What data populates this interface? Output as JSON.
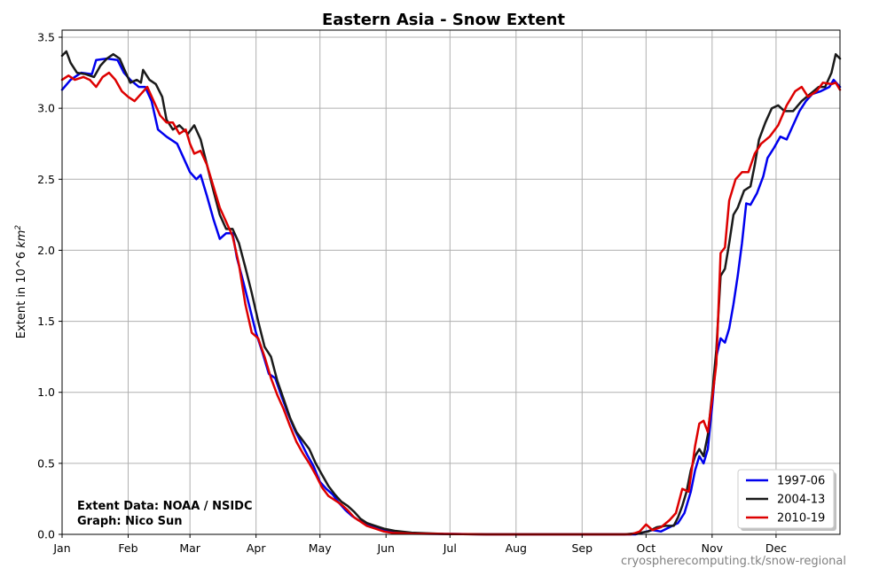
{
  "chart_data": {
    "type": "line",
    "title": "Eastern Asia - Snow Extent",
    "xlabel": "",
    "ylabel_main": "Extent in 10^6 ",
    "ylabel_unit": "km",
    "ylabel_sup": "2",
    "x_unit": "day of year",
    "xlim": [
      1,
      366
    ],
    "ylim": [
      0,
      3.55
    ],
    "x_ticks": [
      {
        "label": "Jan",
        "day": 1
      },
      {
        "label": "Feb",
        "day": 32
      },
      {
        "label": "Mar",
        "day": 61
      },
      {
        "label": "Apr",
        "day": 92
      },
      {
        "label": "May",
        "day": 122
      },
      {
        "label": "Jun",
        "day": 153
      },
      {
        "label": "Jul",
        "day": 183
      },
      {
        "label": "Aug",
        "day": 214
      },
      {
        "label": "Sep",
        "day": 245
      },
      {
        "label": "Oct",
        "day": 275
      },
      {
        "label": "Nov",
        "day": 306
      },
      {
        "label": "Dec",
        "day": 336
      }
    ],
    "y_ticks": [
      0.0,
      0.5,
      1.0,
      1.5,
      2.0,
      2.5,
      3.0,
      3.5
    ],
    "y_tick_labels": [
      "0.0",
      "0.5",
      "1.0",
      "1.5",
      "2.0",
      "2.5",
      "3.0",
      "3.5"
    ],
    "grid": true,
    "legend_position": "bottom-right",
    "series": [
      {
        "name": "1997-06",
        "color": "#0000ee",
        "points": [
          [
            1,
            3.13
          ],
          [
            5,
            3.2
          ],
          [
            10,
            3.25
          ],
          [
            15,
            3.24
          ],
          [
            17,
            3.34
          ],
          [
            22,
            3.35
          ],
          [
            27,
            3.34
          ],
          [
            30,
            3.25
          ],
          [
            33,
            3.2
          ],
          [
            37,
            3.15
          ],
          [
            40,
            3.15
          ],
          [
            43,
            3.05
          ],
          [
            46,
            2.85
          ],
          [
            50,
            2.8
          ],
          [
            55,
            2.75
          ],
          [
            58,
            2.65
          ],
          [
            61,
            2.55
          ],
          [
            64,
            2.5
          ],
          [
            66,
            2.53
          ],
          [
            69,
            2.38
          ],
          [
            72,
            2.22
          ],
          [
            75,
            2.08
          ],
          [
            78,
            2.12
          ],
          [
            81,
            2.12
          ],
          [
            83,
            1.95
          ],
          [
            86,
            1.78
          ],
          [
            89,
            1.6
          ],
          [
            92,
            1.42
          ],
          [
            95,
            1.28
          ],
          [
            98,
            1.13
          ],
          [
            101,
            1.1
          ],
          [
            104,
            0.97
          ],
          [
            107,
            0.85
          ],
          [
            110,
            0.74
          ],
          [
            113,
            0.65
          ],
          [
            116,
            0.56
          ],
          [
            119,
            0.48
          ],
          [
            122,
            0.37
          ],
          [
            125,
            0.32
          ],
          [
            128,
            0.28
          ],
          [
            131,
            0.22
          ],
          [
            134,
            0.17
          ],
          [
            137,
            0.13
          ],
          [
            140,
            0.1
          ],
          [
            143,
            0.08
          ],
          [
            146,
            0.06
          ],
          [
            150,
            0.04
          ],
          [
            155,
            0.02
          ],
          [
            160,
            0.015
          ],
          [
            170,
            0.005
          ],
          [
            200,
            0.0
          ],
          [
            270,
            0.0
          ],
          [
            278,
            0.03
          ],
          [
            282,
            0.02
          ],
          [
            286,
            0.05
          ],
          [
            290,
            0.08
          ],
          [
            293,
            0.15
          ],
          [
            296,
            0.3
          ],
          [
            298,
            0.45
          ],
          [
            300,
            0.55
          ],
          [
            302,
            0.5
          ],
          [
            304,
            0.6
          ],
          [
            306,
            0.9
          ],
          [
            308,
            1.25
          ],
          [
            310,
            1.38
          ],
          [
            312,
            1.35
          ],
          [
            314,
            1.45
          ],
          [
            316,
            1.62
          ],
          [
            318,
            1.82
          ],
          [
            320,
            2.05
          ],
          [
            322,
            2.33
          ],
          [
            324,
            2.32
          ],
          [
            327,
            2.4
          ],
          [
            330,
            2.52
          ],
          [
            332,
            2.65
          ],
          [
            335,
            2.72
          ],
          [
            338,
            2.8
          ],
          [
            341,
            2.78
          ],
          [
            344,
            2.88
          ],
          [
            347,
            2.98
          ],
          [
            350,
            3.05
          ],
          [
            353,
            3.1
          ],
          [
            357,
            3.12
          ],
          [
            361,
            3.15
          ],
          [
            363,
            3.2
          ],
          [
            366,
            3.15
          ]
        ]
      },
      {
        "name": "2004-13",
        "color": "#1a1a1a",
        "points": [
          [
            1,
            3.37
          ],
          [
            3,
            3.4
          ],
          [
            5,
            3.32
          ],
          [
            8,
            3.25
          ],
          [
            12,
            3.24
          ],
          [
            16,
            3.22
          ],
          [
            19,
            3.3
          ],
          [
            22,
            3.35
          ],
          [
            25,
            3.38
          ],
          [
            28,
            3.35
          ],
          [
            30,
            3.28
          ],
          [
            33,
            3.18
          ],
          [
            36,
            3.2
          ],
          [
            38,
            3.18
          ],
          [
            39,
            3.27
          ],
          [
            42,
            3.2
          ],
          [
            45,
            3.17
          ],
          [
            48,
            3.08
          ],
          [
            50,
            2.92
          ],
          [
            53,
            2.85
          ],
          [
            56,
            2.88
          ],
          [
            60,
            2.82
          ],
          [
            63,
            2.88
          ],
          [
            66,
            2.78
          ],
          [
            69,
            2.6
          ],
          [
            72,
            2.42
          ],
          [
            75,
            2.25
          ],
          [
            78,
            2.15
          ],
          [
            81,
            2.15
          ],
          [
            84,
            2.05
          ],
          [
            87,
            1.88
          ],
          [
            90,
            1.7
          ],
          [
            93,
            1.5
          ],
          [
            96,
            1.32
          ],
          [
            99,
            1.25
          ],
          [
            102,
            1.08
          ],
          [
            105,
            0.95
          ],
          [
            108,
            0.82
          ],
          [
            111,
            0.72
          ],
          [
            114,
            0.66
          ],
          [
            117,
            0.6
          ],
          [
            120,
            0.5
          ],
          [
            123,
            0.42
          ],
          [
            126,
            0.34
          ],
          [
            129,
            0.28
          ],
          [
            132,
            0.23
          ],
          [
            135,
            0.2
          ],
          [
            138,
            0.16
          ],
          [
            141,
            0.11
          ],
          [
            144,
            0.08
          ],
          [
            148,
            0.06
          ],
          [
            152,
            0.04
          ],
          [
            157,
            0.025
          ],
          [
            165,
            0.012
          ],
          [
            180,
            0.003
          ],
          [
            200,
            0.0
          ],
          [
            265,
            0.0
          ],
          [
            272,
            0.01
          ],
          [
            276,
            0.02
          ],
          [
            280,
            0.05
          ],
          [
            284,
            0.06
          ],
          [
            288,
            0.06
          ],
          [
            290,
            0.12
          ],
          [
            292,
            0.2
          ],
          [
            294,
            0.3
          ],
          [
            296,
            0.45
          ],
          [
            298,
            0.55
          ],
          [
            300,
            0.6
          ],
          [
            302,
            0.55
          ],
          [
            304,
            0.7
          ],
          [
            306,
            0.98
          ],
          [
            308,
            1.3
          ],
          [
            310,
            1.82
          ],
          [
            312,
            1.87
          ],
          [
            314,
            2.05
          ],
          [
            316,
            2.25
          ],
          [
            318,
            2.3
          ],
          [
            321,
            2.42
          ],
          [
            324,
            2.45
          ],
          [
            326,
            2.6
          ],
          [
            328,
            2.78
          ],
          [
            331,
            2.9
          ],
          [
            334,
            3.0
          ],
          [
            337,
            3.02
          ],
          [
            340,
            2.98
          ],
          [
            344,
            2.98
          ],
          [
            348,
            3.05
          ],
          [
            352,
            3.1
          ],
          [
            356,
            3.15
          ],
          [
            359,
            3.15
          ],
          [
            362,
            3.25
          ],
          [
            364,
            3.38
          ],
          [
            366,
            3.35
          ]
        ]
      },
      {
        "name": "2010-19",
        "color": "#dd0000",
        "points": [
          [
            1,
            3.2
          ],
          [
            4,
            3.23
          ],
          [
            7,
            3.2
          ],
          [
            11,
            3.22
          ],
          [
            14,
            3.2
          ],
          [
            17,
            3.15
          ],
          [
            20,
            3.22
          ],
          [
            23,
            3.25
          ],
          [
            26,
            3.2
          ],
          [
            29,
            3.12
          ],
          [
            32,
            3.08
          ],
          [
            35,
            3.05
          ],
          [
            38,
            3.1
          ],
          [
            41,
            3.15
          ],
          [
            44,
            3.05
          ],
          [
            47,
            2.95
          ],
          [
            50,
            2.9
          ],
          [
            53,
            2.9
          ],
          [
            56,
            2.82
          ],
          [
            59,
            2.85
          ],
          [
            61,
            2.75
          ],
          [
            63,
            2.68
          ],
          [
            66,
            2.7
          ],
          [
            69,
            2.6
          ],
          [
            72,
            2.45
          ],
          [
            75,
            2.3
          ],
          [
            78,
            2.2
          ],
          [
            81,
            2.1
          ],
          [
            84,
            1.9
          ],
          [
            87,
            1.62
          ],
          [
            90,
            1.42
          ],
          [
            93,
            1.38
          ],
          [
            96,
            1.25
          ],
          [
            99,
            1.1
          ],
          [
            102,
            0.98
          ],
          [
            105,
            0.88
          ],
          [
            108,
            0.76
          ],
          [
            111,
            0.65
          ],
          [
            114,
            0.57
          ],
          [
            117,
            0.5
          ],
          [
            120,
            0.42
          ],
          [
            123,
            0.33
          ],
          [
            126,
            0.27
          ],
          [
            129,
            0.24
          ],
          [
            132,
            0.21
          ],
          [
            135,
            0.17
          ],
          [
            138,
            0.12
          ],
          [
            141,
            0.09
          ],
          [
            144,
            0.06
          ],
          [
            148,
            0.04
          ],
          [
            152,
            0.02
          ],
          [
            156,
            0.01
          ],
          [
            165,
            0.005
          ],
          [
            200,
            0.0
          ],
          [
            268,
            0.0
          ],
          [
            272,
            0.02
          ],
          [
            275,
            0.07
          ],
          [
            278,
            0.03
          ],
          [
            282,
            0.05
          ],
          [
            286,
            0.1
          ],
          [
            289,
            0.15
          ],
          [
            292,
            0.32
          ],
          [
            295,
            0.3
          ],
          [
            298,
            0.62
          ],
          [
            300,
            0.78
          ],
          [
            302,
            0.8
          ],
          [
            304,
            0.72
          ],
          [
            306,
            0.95
          ],
          [
            308,
            1.2
          ],
          [
            310,
            1.98
          ],
          [
            312,
            2.02
          ],
          [
            314,
            2.35
          ],
          [
            317,
            2.5
          ],
          [
            320,
            2.55
          ],
          [
            323,
            2.55
          ],
          [
            326,
            2.68
          ],
          [
            329,
            2.75
          ],
          [
            333,
            2.8
          ],
          [
            337,
            2.88
          ],
          [
            341,
            3.02
          ],
          [
            345,
            3.12
          ],
          [
            348,
            3.15
          ],
          [
            351,
            3.08
          ],
          [
            355,
            3.12
          ],
          [
            358,
            3.18
          ],
          [
            362,
            3.17
          ],
          [
            364,
            3.18
          ],
          [
            366,
            3.13
          ]
        ]
      }
    ],
    "annotations": [
      "Extent Data: NOAA / NSIDC",
      "Graph: Nico Sun"
    ],
    "credit": "cryospherecomputing.tk/snow-regional"
  }
}
